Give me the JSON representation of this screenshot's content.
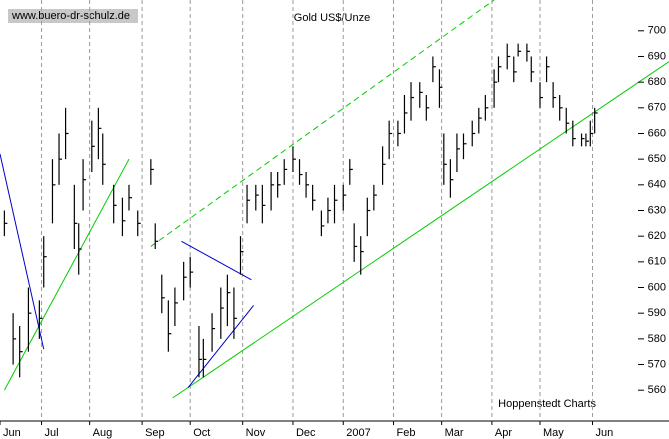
{
  "chart_data": {
    "type": "ohlc",
    "title": "Gold US$/Unze",
    "source": "www.buero-dr-schulz.de",
    "note": "Hoppenstedt Charts",
    "color": "#000000",
    "x": [
      0,
      4,
      7,
      11,
      16,
      18,
      22,
      25,
      28,
      32,
      34,
      36,
      40,
      43,
      45,
      50,
      54,
      57,
      61,
      67,
      69,
      72,
      75,
      78,
      82,
      85,
      89,
      91,
      95,
      99,
      102,
      105,
      108,
      111,
      115,
      118,
      122,
      125,
      128,
      132,
      135,
      138,
      141,
      145,
      148,
      151,
      155,
      158,
      160,
      163,
      166,
      169,
      173,
      176,
      180,
      183,
      186,
      190,
      193,
      196,
      199,
      201,
      204,
      207,
      210,
      214,
      217,
      220,
      224,
      226,
      230,
      233,
      235,
      239,
      241,
      245,
      248,
      251,
      254,
      257,
      260,
      264,
      266,
      268,
      270
    ],
    "high": [
      630,
      590,
      585,
      600,
      595,
      620,
      650,
      660,
      670,
      640,
      625,
      650,
      665,
      670,
      660,
      640,
      635,
      640,
      630,
      650,
      625,
      605,
      595,
      600,
      610,
      612,
      585,
      580,
      590,
      600,
      605,
      600,
      620,
      640,
      640,
      640,
      645,
      645,
      650,
      655,
      650,
      645,
      640,
      630,
      635,
      640,
      640,
      650,
      625,
      620,
      635,
      640,
      655,
      665,
      665,
      675,
      680,
      680,
      675,
      690,
      685,
      660,
      650,
      660,
      660,
      665,
      670,
      675,
      685,
      690,
      695,
      690,
      695,
      695,
      690,
      680,
      690,
      680,
      675,
      670,
      665,
      660,
      660,
      665,
      670
    ],
    "low": [
      620,
      570,
      565,
      575,
      580,
      600,
      625,
      640,
      650,
      615,
      605,
      630,
      645,
      650,
      640,
      625,
      620,
      630,
      620,
      640,
      615,
      590,
      575,
      585,
      595,
      600,
      565,
      565,
      575,
      580,
      585,
      580,
      605,
      625,
      630,
      625,
      630,
      635,
      640,
      645,
      640,
      635,
      630,
      620,
      625,
      625,
      630,
      640,
      610,
      605,
      620,
      630,
      640,
      650,
      655,
      660,
      665,
      670,
      665,
      680,
      670,
      640,
      635,
      645,
      650,
      655,
      660,
      665,
      670,
      680,
      685,
      680,
      690,
      688,
      680,
      670,
      680,
      670,
      665,
      660,
      655,
      655,
      655,
      655,
      660
    ],
    "close": [
      625,
      580,
      575,
      590,
      588,
      612,
      640,
      650,
      660,
      625,
      615,
      642,
      655,
      662,
      648,
      632,
      626,
      635,
      625,
      646,
      618,
      596,
      582,
      594,
      604,
      606,
      572,
      572,
      584,
      592,
      598,
      588,
      614,
      634,
      636,
      632,
      640,
      640,
      646,
      650,
      644,
      640,
      634,
      624,
      630,
      634,
      636,
      646,
      616,
      614,
      630,
      636,
      648,
      660,
      660,
      668,
      674,
      676,
      670,
      686,
      678,
      648,
      642,
      654,
      656,
      660,
      666,
      670,
      680,
      686,
      690,
      684,
      692,
      692,
      684,
      674,
      686,
      674,
      670,
      664,
      658,
      658,
      657,
      660,
      668
    ],
    "xlim": [
      -2,
      304
    ],
    "ylim": [
      548,
      712
    ],
    "xticks": [
      {
        "value": -2,
        "label": "Jun"
      },
      {
        "value": 17,
        "label": "Jul"
      },
      {
        "value": 39,
        "label": "Aug"
      },
      {
        "value": 63,
        "label": "Sep"
      },
      {
        "value": 85,
        "label": "Oct"
      },
      {
        "value": 109,
        "label": "Nov"
      },
      {
        "value": 132,
        "label": "Dec"
      },
      {
        "value": 155,
        "label": "2007"
      },
      {
        "value": 178,
        "label": "Feb"
      },
      {
        "value": 200,
        "label": "Mar"
      },
      {
        "value": 223,
        "label": "Apr"
      },
      {
        "value": 245,
        "label": "May"
      },
      {
        "value": 269,
        "label": "Jun"
      }
    ],
    "yticks": [
      560,
      570,
      580,
      590,
      600,
      610,
      620,
      630,
      640,
      650,
      660,
      670,
      680,
      690,
      700
    ],
    "grid": true,
    "trendlines": [
      {
        "color": "#00cc00",
        "dashed": false,
        "x": [
          0,
          57
        ],
        "y": [
          560,
          650
        ]
      },
      {
        "color": "#00cc00",
        "dashed": false,
        "x": [
          77,
          304
        ],
        "y": [
          557,
          688
        ]
      },
      {
        "color": "#00cc00",
        "dashed": true,
        "x": [
          67,
          224
        ],
        "y": [
          616,
          712
        ]
      },
      {
        "color": "#0000cc",
        "dashed": false,
        "x": [
          -2,
          18
        ],
        "y": [
          652,
          576
        ]
      },
      {
        "color": "#0000cc",
        "dashed": false,
        "x": [
          81,
          113
        ],
        "y": [
          618,
          603
        ]
      },
      {
        "color": "#0000cc",
        "dashed": false,
        "x": [
          84,
          114
        ],
        "y": [
          561,
          593
        ]
      }
    ]
  }
}
